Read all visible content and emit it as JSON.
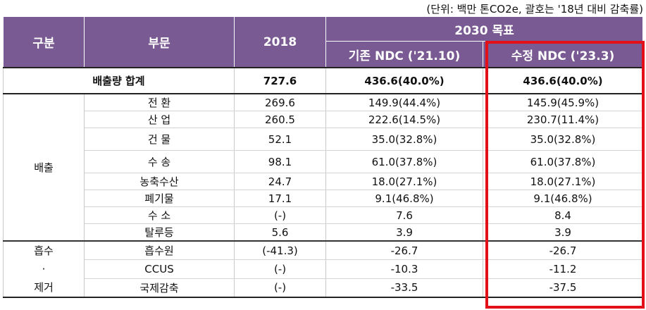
{
  "unit_note": "(단위: 백만 톤CO2e, 괄호는 '18년 대비 감축률)",
  "header": {
    "col_group": "구분",
    "col_sector": "부문",
    "col_2018": "2018",
    "col_target": "2030 목표",
    "col_existing": "기존 NDC ('21.10)",
    "col_revised": "수정 NDC ('23.3)"
  },
  "total": {
    "label": "배출량 합계",
    "v2018": "727.6",
    "existing": "436.6(40.0%)",
    "revised": "436.6(40.0%)"
  },
  "emission": {
    "group_label": "배출",
    "rows": [
      {
        "sector": "전 환",
        "v2018": "269.6",
        "existing": "149.9(44.4%)",
        "revised": "145.9(45.9%)"
      },
      {
        "sector": "산 업",
        "v2018": "260.5",
        "existing": "222.6(14.5%)",
        "revised": "230.7(11.4%)"
      },
      {
        "sector": "건 물",
        "v2018": "52.1",
        "existing": "35.0(32.8%)",
        "revised": "35.0(32.8%)"
      },
      {
        "sector": "수 송",
        "v2018": "98.1",
        "existing": "61.0(37.8%)",
        "revised": "61.0(37.8%)"
      },
      {
        "sector": "농축수산",
        "v2018": "24.7",
        "existing": "18.0(27.1%)",
        "revised": "18.0(27.1%)"
      },
      {
        "sector": "폐기물",
        "v2018": "17.1",
        "existing": "9.1(46.8%)",
        "revised": "9.1(46.8%)"
      },
      {
        "sector": "수 소",
        "v2018": "(-)",
        "existing": "7.6",
        "revised": "8.4"
      },
      {
        "sector": "탈루등",
        "v2018": "5.6",
        "existing": "3.9",
        "revised": "3.9"
      }
    ]
  },
  "absorption": {
    "group_line1": "흡수",
    "group_line2": "·",
    "group_line3": "제거",
    "rows": [
      {
        "sector": "흡수원",
        "v2018": "(-41.3)",
        "existing": "-26.7",
        "revised": "-26.7"
      },
      {
        "sector": "CCUS",
        "v2018": "(-)",
        "existing": "-10.3",
        "revised": "-11.2"
      },
      {
        "sector": "국제감축",
        "v2018": "(-)",
        "existing": "-33.5",
        "revised": "-37.5"
      }
    ]
  },
  "colors": {
    "header_bg": "#7a5a92",
    "highlight": "#e3101a"
  }
}
